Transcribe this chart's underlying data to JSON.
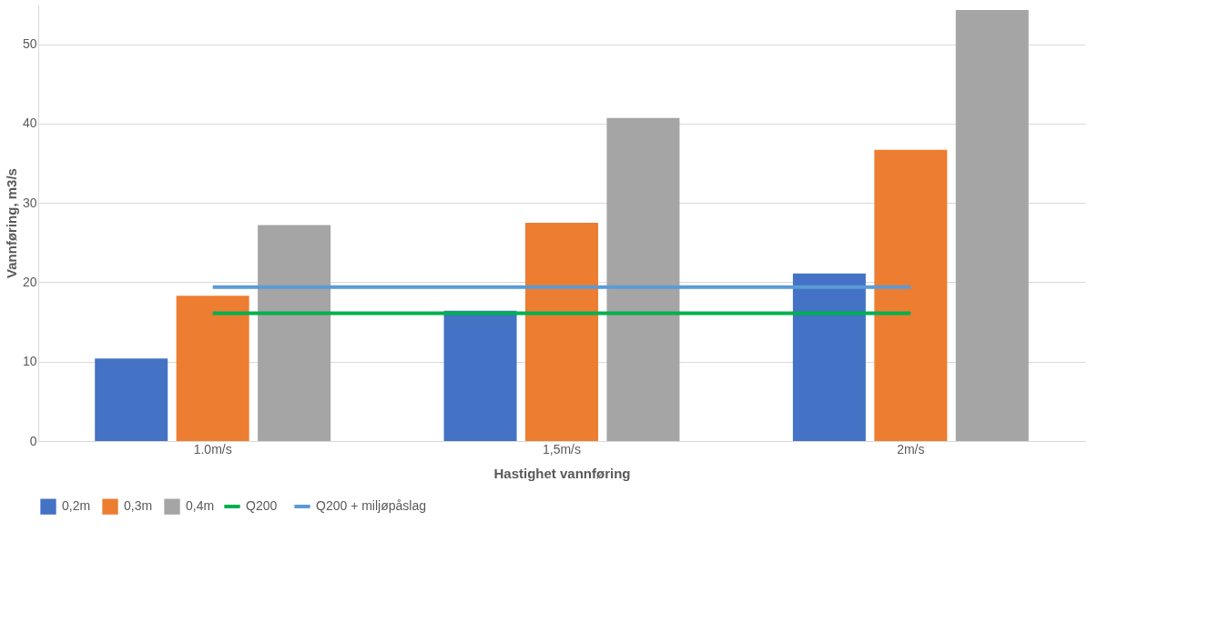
{
  "chart_data": {
    "type": "bar",
    "xlabel": "Hastighet vannføring",
    "ylabel": "Vannføring, m3/s",
    "categories": [
      "1.0m/s",
      "1,5m/s",
      "2m/s"
    ],
    "series": [
      {
        "name": "0,2m",
        "color": "#4472c4",
        "values": [
          10.4,
          16.4,
          21.1
        ]
      },
      {
        "name": "0,3m",
        "color": "#ed7d31",
        "values": [
          18.3,
          27.5,
          36.7
        ]
      },
      {
        "name": "0,4m",
        "color": "#a5a5a5",
        "values": [
          27.2,
          40.7,
          54.3
        ]
      },
      {
        "name": "Q200",
        "type": "line",
        "color": "#00b050",
        "values": [
          16.1,
          16.1,
          16.1
        ]
      },
      {
        "name": "Q200 + miljøpåslag",
        "type": "line",
        "color": "#5b9bd5",
        "values": [
          19.4,
          19.4,
          19.4
        ]
      }
    ],
    "ylim": [
      0,
      55
    ],
    "yticks": [
      0,
      10,
      20,
      30,
      40,
      50
    ],
    "grid": "y",
    "legend": "bottom",
    "marker": "none",
    "line_style": "solid"
  }
}
